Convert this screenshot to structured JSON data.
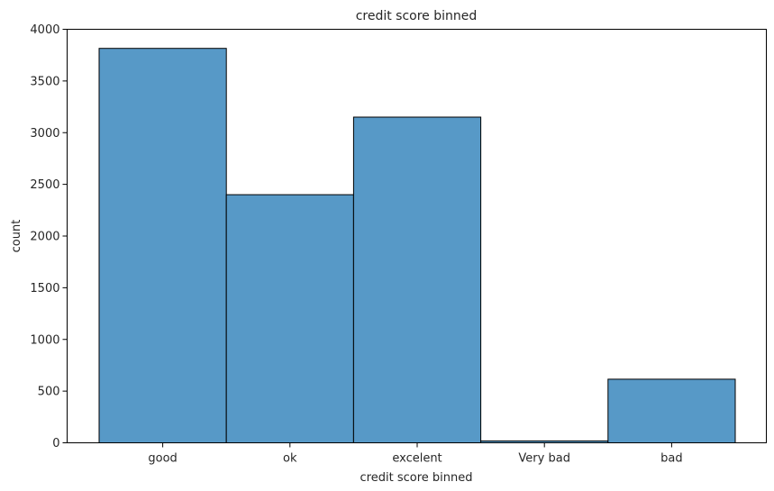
{
  "chart_data": {
    "type": "bar",
    "title": "credit score binned",
    "xlabel": "credit score binned",
    "ylabel": "count",
    "categories": [
      "good",
      "ok",
      "excelent",
      "Very bad",
      "bad"
    ],
    "values": [
      3815,
      2400,
      3150,
      18,
      615
    ],
    "ylim": [
      0,
      4000
    ],
    "yticks": [
      0,
      500,
      1000,
      1500,
      2000,
      2500,
      3000,
      3500,
      4000
    ],
    "grid": false,
    "legend": "none",
    "colors": {
      "bar_fill": "#5799c7",
      "bar_edge": "#000000",
      "axis": "#000000",
      "text": "#262626"
    }
  }
}
